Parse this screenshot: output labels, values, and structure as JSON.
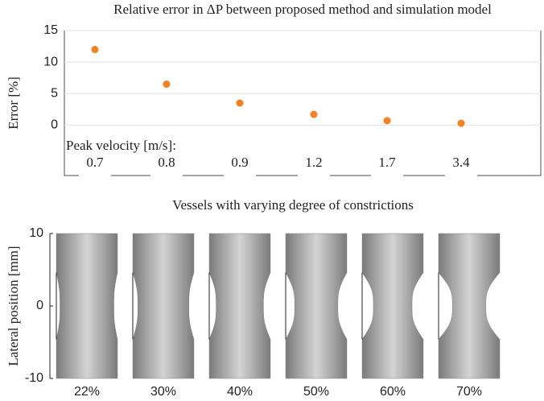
{
  "chart_data": [
    {
      "type": "scatter",
      "title": "Relative error in ΔP between proposed method and simulation model",
      "ylabel": "Error [%]",
      "annotation": "Peak velocity [m/s]:",
      "categories": [
        "0.7",
        "0.8",
        "0.9",
        "1.2",
        "1.7",
        "3.4"
      ],
      "values": [
        12,
        6.5,
        3.5,
        1.7,
        0.7,
        0.3
      ],
      "color": "#f5821f",
      "ylim": [
        -8,
        15
      ],
      "yticks": [
        0,
        5,
        10,
        15
      ],
      "grid": true
    },
    {
      "type": "vessel",
      "title": "Vessels with varying degree of constrictions",
      "ylabel": "Lateral position [mm]",
      "values": [
        22,
        30,
        40,
        50,
        60,
        70
      ],
      "value_labels": [
        "22%",
        "30%",
        "40%",
        "50%",
        "60%",
        "70%"
      ],
      "ylim": [
        -10,
        10
      ],
      "yticks": [
        -10,
        0,
        10
      ],
      "grid": false
    }
  ]
}
